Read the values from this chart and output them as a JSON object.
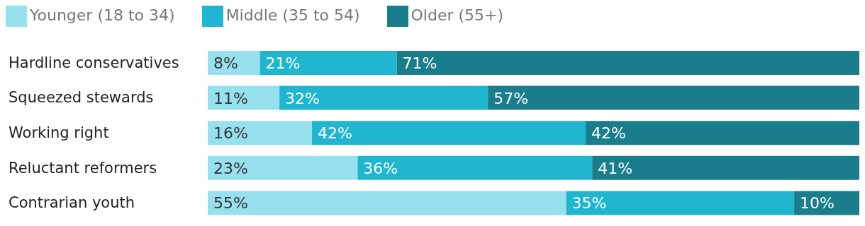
{
  "chart_data": {
    "type": "bar",
    "orientation": "horizontal",
    "stacked": true,
    "legend": "top left",
    "categories": [
      "Hardline conservatives",
      "Squeezed stewards",
      "Working right",
      "Reluctant reformers",
      "Contrarian youth"
    ],
    "xlim": [
      0,
      100
    ],
    "series": [
      {
        "name": "Younger (18 to 34)",
        "color": "#97e1ee",
        "values": [
          8,
          11,
          16,
          23,
          55
        ],
        "value_labels": [
          "8%",
          "11%",
          "16%",
          "23%",
          "55%"
        ]
      },
      {
        "name": "Middle (35 to 54)",
        "color": "#21b6d0",
        "values": [
          21,
          32,
          42,
          36,
          35
        ],
        "value_labels": [
          "21%",
          "32%",
          "42%",
          "36%",
          "35%"
        ]
      },
      {
        "name": "Older (55+)",
        "color": "#1a7d8c",
        "values": [
          71,
          57,
          42,
          41,
          10
        ],
        "value_labels": [
          "71%",
          "57%",
          "42%",
          "41%",
          "10%"
        ]
      }
    ]
  }
}
